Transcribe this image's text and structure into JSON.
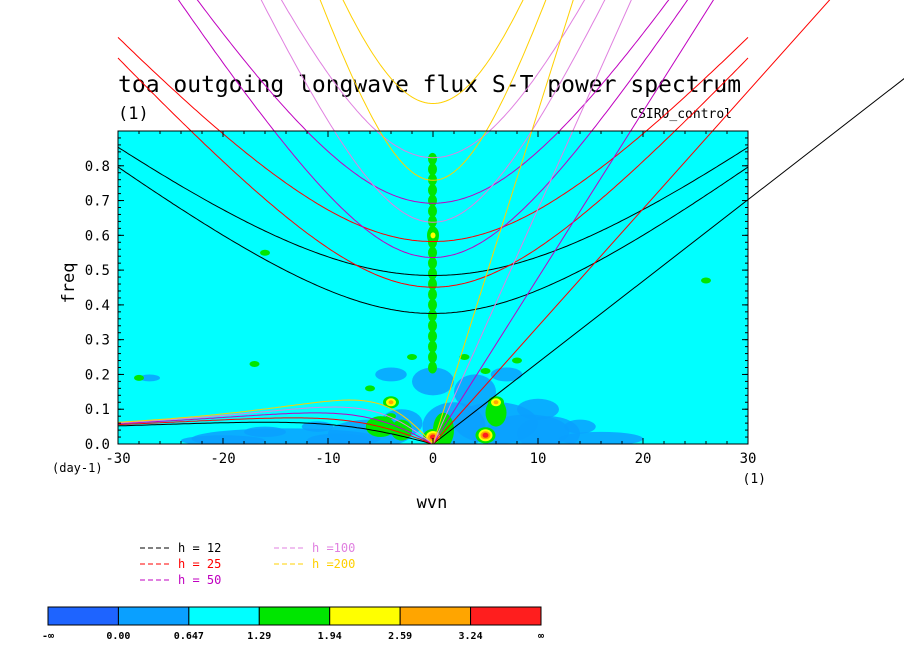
{
  "chart_data": {
    "type": "heatmap",
    "title": "toa outgoing longwave flux S-T power spectrum",
    "subtitle": "(1)",
    "model_label": "CSIRO_control",
    "xlabel": "wvn",
    "ylabel": "freq",
    "x_unit": "(1)",
    "y_unit": "(day-1)",
    "xlim": [
      -30,
      30
    ],
    "ylim": [
      0,
      0.9
    ],
    "xticks": [
      -30,
      -20,
      -10,
      0,
      10,
      20,
      30
    ],
    "yticks": [
      0.0,
      0.1,
      0.2,
      0.3,
      0.4,
      0.5,
      0.6,
      0.7,
      0.8
    ],
    "background_level_color": "#00ffff",
    "colorbar": {
      "labels": [
        "-∞",
        "0.00",
        "0.647",
        "1.29",
        "1.94",
        "2.59",
        "3.24",
        "∞"
      ],
      "colors": [
        "#1e64ff",
        "#0aa0ff",
        "#00ffff",
        "#00e600",
        "#ffff00",
        "#ffa500",
        "#ff1e1e"
      ]
    },
    "dispersion_curves": [
      {
        "label": "h = 12",
        "color": "#000000",
        "h": 12
      },
      {
        "label": "h = 25",
        "color": "#ff0000",
        "h": 25
      },
      {
        "label": "h = 50",
        "color": "#c000c0",
        "h": 50
      },
      {
        "label": "h =100",
        "color": "#e080e0",
        "h": 100
      },
      {
        "label": "h =200",
        "color": "#ffd000",
        "h": 200
      }
    ],
    "features": [
      {
        "x": 0,
        "y": 0.6,
        "level": "1.94"
      },
      {
        "x": 0,
        "y": 0.02,
        "level": "3.24"
      },
      {
        "x": 5,
        "y": 0.025,
        "level": "3.24"
      },
      {
        "x": -4,
        "y": 0.12,
        "level": "2.59"
      },
      {
        "x": 6,
        "y": 0.12,
        "level": "2.59"
      }
    ]
  }
}
